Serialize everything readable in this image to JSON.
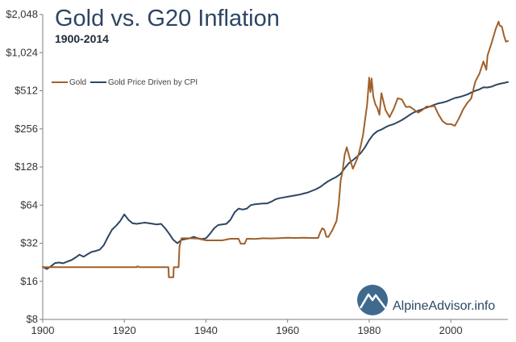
{
  "colors": {
    "gold": "#a0602a",
    "cpi": "#2d4663",
    "axis": "#7f7f7f",
    "title": "#2d4663"
  },
  "brand": {
    "name": "AlpineAdvisor",
    "suffix": ".info",
    "icon": "mountain-circle-icon"
  },
  "chart_data": {
    "type": "line",
    "title": "Gold vs. G20 Inflation",
    "subtitle": "1900-2014",
    "xlabel": "",
    "ylabel": "",
    "xlim": [
      1900,
      2014
    ],
    "ylim": [
      8,
      2048
    ],
    "y_scale": "log2",
    "grid": false,
    "legend_position": "left",
    "x_ticks": [
      1900,
      1920,
      1940,
      1960,
      1980,
      2000
    ],
    "x_tick_labels": [
      "1900",
      "1920",
      "1940",
      "1960",
      "1980",
      "2000"
    ],
    "y_ticks": [
      8,
      16,
      32,
      64,
      128,
      256,
      512,
      1024,
      2048
    ],
    "y_tick_labels": [
      "$8",
      "$16",
      "$32",
      "$64",
      "$128",
      "$256",
      "$512",
      "$1,024",
      "$2,048"
    ],
    "series": [
      {
        "name": "Gold",
        "color": "#a0602a",
        "points": [
          [
            1900,
            20.67
          ],
          [
            1923,
            20.67
          ],
          [
            1923.2,
            21.0
          ],
          [
            1923.8,
            20.67
          ],
          [
            1930.8,
            20.67
          ],
          [
            1930.9,
            17.2
          ],
          [
            1932,
            17.2
          ],
          [
            1932.1,
            20.67
          ],
          [
            1933.3,
            20.67
          ],
          [
            1933.5,
            30.0
          ],
          [
            1934,
            35.0
          ],
          [
            1936,
            35.0
          ],
          [
            1938,
            34.8
          ],
          [
            1940,
            33.7
          ],
          [
            1942,
            33.7
          ],
          [
            1944,
            33.7
          ],
          [
            1946,
            34.7
          ],
          [
            1948,
            34.7
          ],
          [
            1948.5,
            31.7
          ],
          [
            1949.5,
            31.7
          ],
          [
            1950,
            34.7
          ],
          [
            1952,
            34.6
          ],
          [
            1954,
            35.0
          ],
          [
            1956,
            34.9
          ],
          [
            1958,
            35.1
          ],
          [
            1960,
            35.3
          ],
          [
            1962,
            35.2
          ],
          [
            1964,
            35.3
          ],
          [
            1966,
            35.2
          ],
          [
            1967.5,
            35.2
          ],
          [
            1968,
            39.0
          ],
          [
            1968.5,
            42.0
          ],
          [
            1969,
            41.0
          ],
          [
            1969.5,
            36.0
          ],
          [
            1970,
            35.9
          ],
          [
            1971,
            40.8
          ],
          [
            1972,
            48.0
          ],
          [
            1972.5,
            64.0
          ],
          [
            1973,
            100.0
          ],
          [
            1973.5,
            120.0
          ],
          [
            1974,
            160.0
          ],
          [
            1974.5,
            183.0
          ],
          [
            1975,
            160.0
          ],
          [
            1975.5,
            140.0
          ],
          [
            1976,
            124.0
          ],
          [
            1976.5,
            135.0
          ],
          [
            1977,
            147.0
          ],
          [
            1977.5,
            165.0
          ],
          [
            1978,
            193.0
          ],
          [
            1978.5,
            230.0
          ],
          [
            1979,
            306.0
          ],
          [
            1979.5,
            400.0
          ],
          [
            1980,
            650.0
          ],
          [
            1980.3,
            500.0
          ],
          [
            1980.6,
            640.0
          ],
          [
            1981,
            460.0
          ],
          [
            1981.5,
            400.0
          ],
          [
            1982,
            375.0
          ],
          [
            1982.5,
            330.0
          ],
          [
            1983,
            490.0
          ],
          [
            1983.5,
            420.0
          ],
          [
            1984,
            360.0
          ],
          [
            1985,
            317.0
          ],
          [
            1986,
            368.0
          ],
          [
            1987,
            447.0
          ],
          [
            1988,
            437.0
          ],
          [
            1989,
            381.0
          ],
          [
            1990,
            383.0
          ],
          [
            1991,
            362.0
          ],
          [
            1992,
            344.0
          ],
          [
            1993,
            360.0
          ],
          [
            1994,
            384.0
          ],
          [
            1995,
            384.0
          ],
          [
            1996,
            388.0
          ],
          [
            1997,
            331.0
          ],
          [
            1998,
            294.0
          ],
          [
            1999,
            279.0
          ],
          [
            2000,
            279.0
          ],
          [
            2001,
            271.0
          ],
          [
            2002,
            310.0
          ],
          [
            2003,
            364.0
          ],
          [
            2004,
            409.0
          ],
          [
            2005,
            445.0
          ],
          [
            2006,
            604.0
          ],
          [
            2007,
            697.0
          ],
          [
            2008,
            872.0
          ],
          [
            2008.7,
            750.0
          ],
          [
            2009,
            972.0
          ],
          [
            2010,
            1225.0
          ],
          [
            2011,
            1572.0
          ],
          [
            2011.7,
            1800.0
          ],
          [
            2012,
            1669.0
          ],
          [
            2012.5,
            1650.0
          ],
          [
            2013,
            1411.0
          ],
          [
            2013.5,
            1250.0
          ],
          [
            2014,
            1266.0
          ]
        ]
      },
      {
        "name": "Gold Price Driven by CPI",
        "color": "#2d4663",
        "points": [
          [
            1900,
            20.8
          ],
          [
            1901,
            20.0
          ],
          [
            1902,
            21.0
          ],
          [
            1903,
            22.3
          ],
          [
            1904,
            22.5
          ],
          [
            1905,
            22.2
          ],
          [
            1906,
            22.9
          ],
          [
            1907,
            23.5
          ],
          [
            1908,
            24.6
          ],
          [
            1909,
            26.0
          ],
          [
            1910,
            25.0
          ],
          [
            1911,
            26.2
          ],
          [
            1912,
            27.3
          ],
          [
            1913,
            27.8
          ],
          [
            1914,
            28.5
          ],
          [
            1915,
            31.0
          ],
          [
            1916,
            36.0
          ],
          [
            1917,
            41.0
          ],
          [
            1918,
            44.0
          ],
          [
            1919,
            48.0
          ],
          [
            1920,
            54.0
          ],
          [
            1921,
            49.0
          ],
          [
            1922,
            46.0
          ],
          [
            1923,
            45.5
          ],
          [
            1924,
            46.0
          ],
          [
            1925,
            46.5
          ],
          [
            1926,
            46.0
          ],
          [
            1927,
            45.5
          ],
          [
            1928,
            45.0
          ],
          [
            1929,
            45.5
          ],
          [
            1930,
            42.0
          ],
          [
            1931,
            38.0
          ],
          [
            1932,
            34.0
          ],
          [
            1933,
            32.0
          ],
          [
            1934,
            34.0
          ],
          [
            1935,
            34.5
          ],
          [
            1936,
            35.0
          ],
          [
            1937,
            36.0
          ],
          [
            1938,
            35.0
          ],
          [
            1939,
            34.5
          ],
          [
            1940,
            35.0
          ],
          [
            1941,
            38.0
          ],
          [
            1942,
            42.0
          ],
          [
            1943,
            44.5
          ],
          [
            1944,
            45.0
          ],
          [
            1945,
            45.5
          ],
          [
            1946,
            49.0
          ],
          [
            1947,
            56.0
          ],
          [
            1948,
            60.0
          ],
          [
            1949,
            59.0
          ],
          [
            1950,
            60.0
          ],
          [
            1951,
            64.0
          ],
          [
            1952,
            65.0
          ],
          [
            1953,
            65.5
          ],
          [
            1954,
            66.0
          ],
          [
            1955,
            66.0
          ],
          [
            1956,
            68.0
          ],
          [
            1957,
            71.0
          ],
          [
            1958,
            72.5
          ],
          [
            1959,
            73.5
          ],
          [
            1960,
            74.5
          ],
          [
            1961,
            75.5
          ],
          [
            1962,
            76.5
          ],
          [
            1963,
            77.5
          ],
          [
            1964,
            79.0
          ],
          [
            1965,
            80.5
          ],
          [
            1966,
            83.0
          ],
          [
            1967,
            85.5
          ],
          [
            1968,
            89.0
          ],
          [
            1969,
            94.0
          ],
          [
            1970,
            99.0
          ],
          [
            1971,
            103.0
          ],
          [
            1972,
            107.0
          ],
          [
            1973,
            113.0
          ],
          [
            1974,
            125.0
          ],
          [
            1975,
            137.0
          ],
          [
            1976,
            145.0
          ],
          [
            1977,
            154.0
          ],
          [
            1978,
            166.0
          ],
          [
            1979,
            184.0
          ],
          [
            1980,
            209.0
          ],
          [
            1981,
            231.0
          ],
          [
            1982,
            245.0
          ],
          [
            1983,
            253.0
          ],
          [
            1984,
            264.0
          ],
          [
            1985,
            273.0
          ],
          [
            1986,
            279.0
          ],
          [
            1987,
            289.0
          ],
          [
            1988,
            300.0
          ],
          [
            1989,
            315.0
          ],
          [
            1990,
            331.0
          ],
          [
            1991,
            346.0
          ],
          [
            1992,
            356.0
          ],
          [
            1993,
            366.0
          ],
          [
            1994,
            376.0
          ],
          [
            1995,
            386.0
          ],
          [
            1996,
            397.0
          ],
          [
            1997,
            407.0
          ],
          [
            1998,
            413.0
          ],
          [
            1999,
            422.0
          ],
          [
            2000,
            436.0
          ],
          [
            2001,
            449.0
          ],
          [
            2002,
            456.0
          ],
          [
            2003,
            466.0
          ],
          [
            2004,
            478.0
          ],
          [
            2005,
            495.0
          ],
          [
            2006,
            511.0
          ],
          [
            2007,
            525.0
          ],
          [
            2008,
            545.0
          ],
          [
            2009,
            543.0
          ],
          [
            2010,
            552.0
          ],
          [
            2011,
            569.0
          ],
          [
            2012,
            581.0
          ],
          [
            2013,
            589.0
          ],
          [
            2014,
            600.0
          ]
        ]
      }
    ]
  }
}
